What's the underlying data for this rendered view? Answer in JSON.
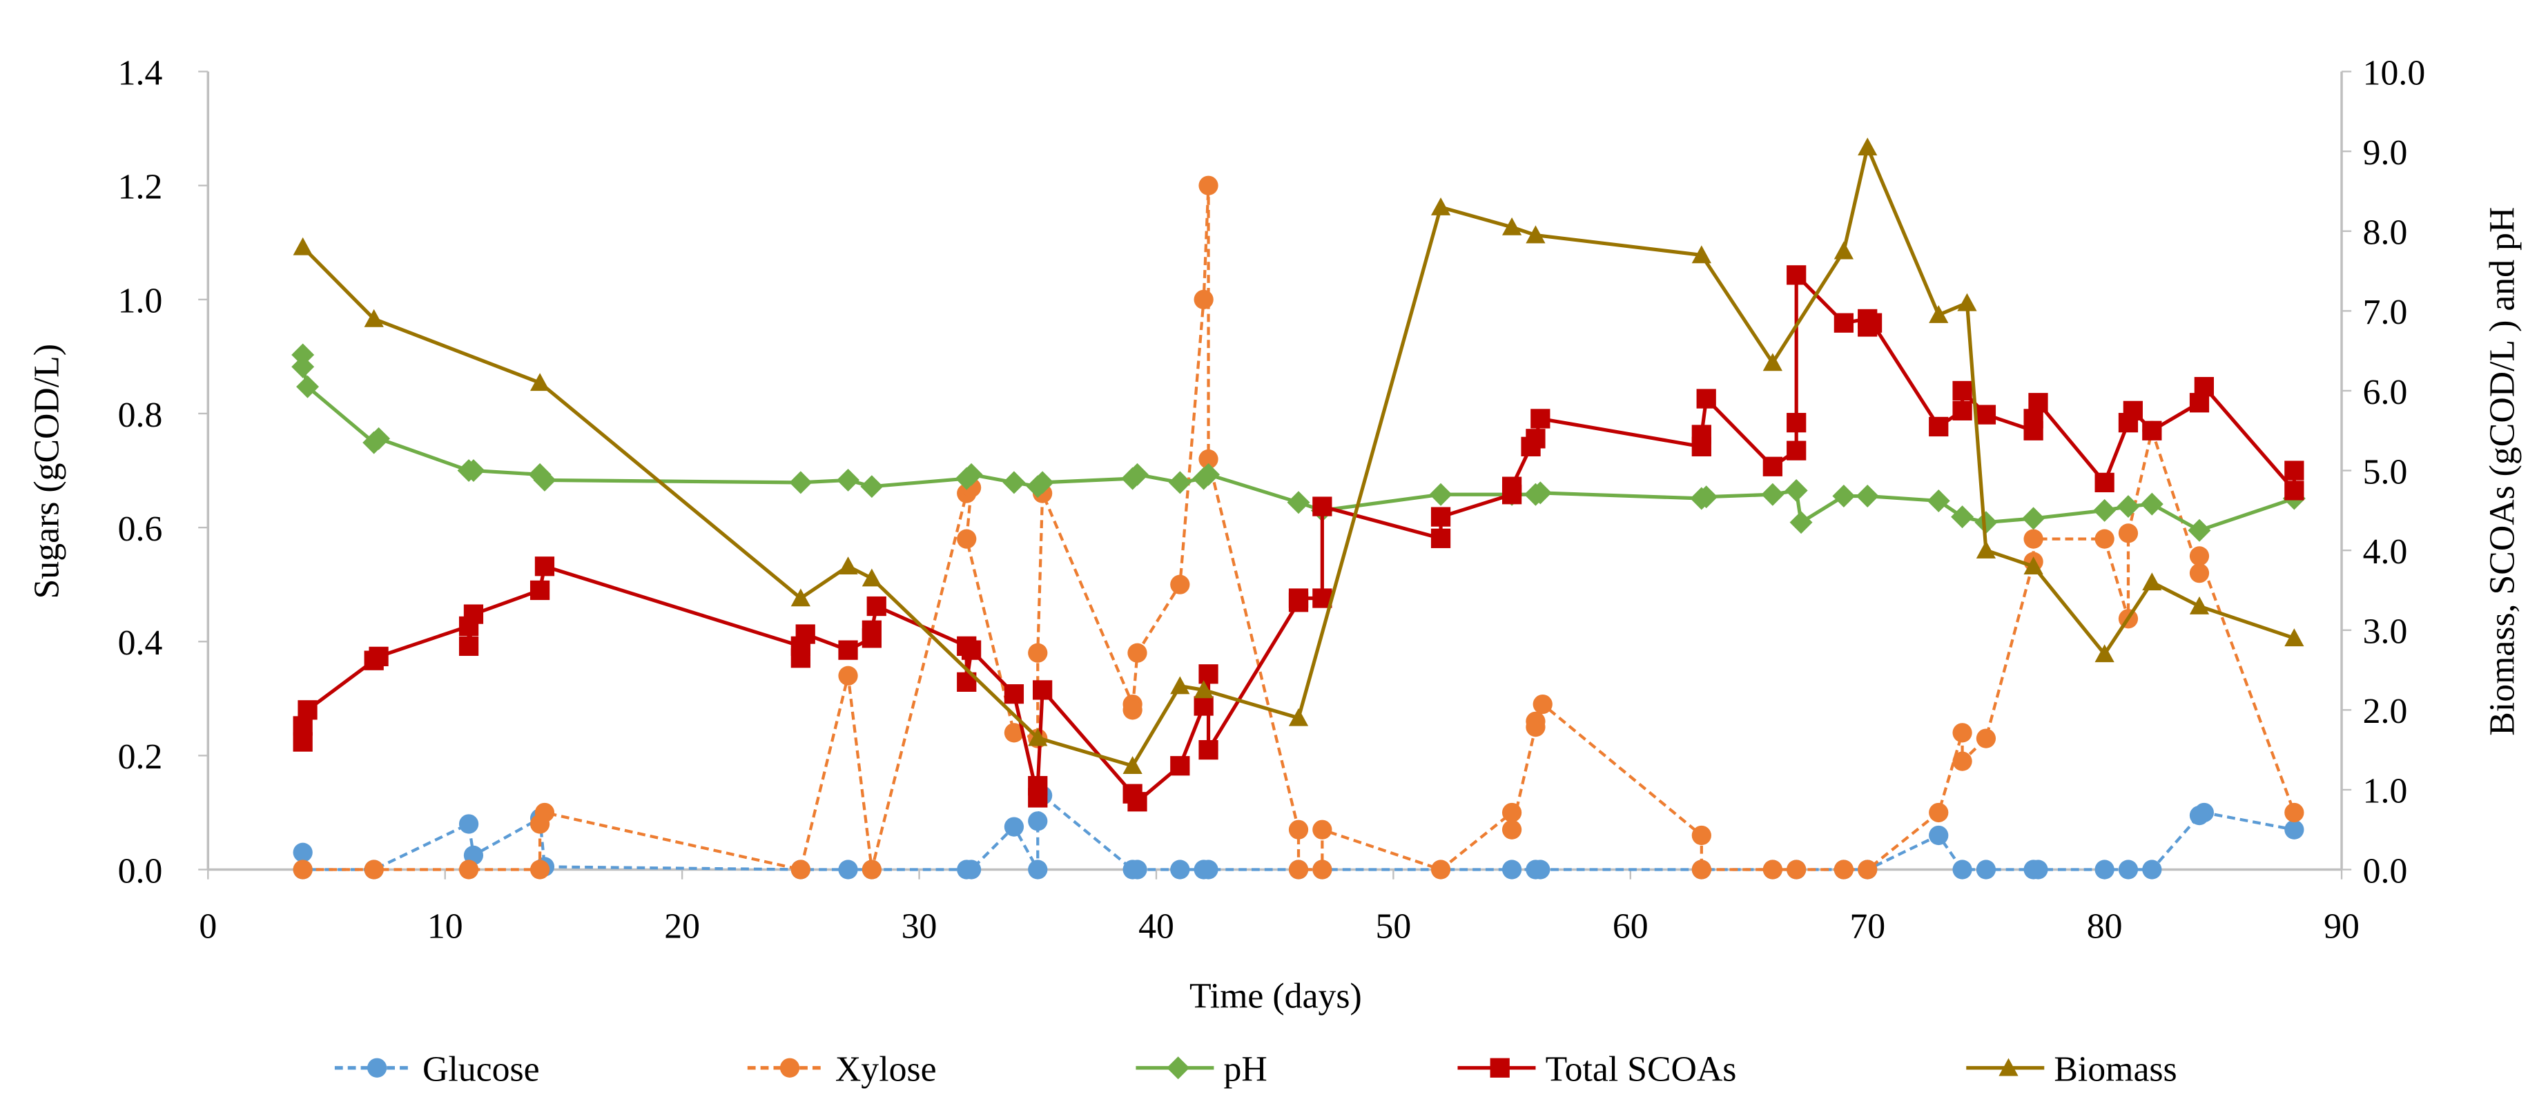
{
  "chart_data": {
    "type": "line",
    "xlabel": "Time (days)",
    "ylabel_left": "Sugars (gCOD/L)",
    "ylabel_right": "Biomass, SCOAs (gCOD/L ) and pH",
    "xlim": [
      0,
      90
    ],
    "ylim_left": [
      0,
      1.4
    ],
    "ylim_right": [
      0,
      10
    ],
    "x_ticks": [
      "0",
      "10",
      "20",
      "30",
      "40",
      "50",
      "60",
      "70",
      "80",
      "90"
    ],
    "y_ticks_left": [
      "0.0",
      "0.2",
      "0.4",
      "0.6",
      "0.8",
      "1.0",
      "1.2",
      "1.4"
    ],
    "y_ticks_right": [
      "0.0",
      "1.0",
      "2.0",
      "3.0",
      "4.0",
      "5.0",
      "6.0",
      "7.0",
      "8.0",
      "9.0",
      "10.0"
    ],
    "grid": false,
    "legend_position": "bottom",
    "series": [
      {
        "name": "Glucose",
        "axis": "left",
        "color": "#5b9bd5",
        "dash": true,
        "marker": "circle",
        "points": [
          [
            4,
            0.03
          ],
          [
            4,
            0
          ],
          [
            7,
            0
          ],
          [
            11,
            0.08
          ],
          [
            11.2,
            0.025
          ],
          [
            14,
            0.09
          ],
          [
            14.2,
            0.005
          ],
          [
            25,
            0
          ],
          [
            27,
            0
          ],
          [
            28,
            0
          ],
          [
            32,
            0
          ],
          [
            32.2,
            0
          ],
          [
            34,
            0.075
          ],
          [
            35,
            0
          ],
          [
            35,
            0.085
          ],
          [
            35.2,
            0.13
          ],
          [
            39,
            0
          ],
          [
            39.2,
            0
          ],
          [
            41,
            0
          ],
          [
            42,
            0
          ],
          [
            42.2,
            0
          ],
          [
            46,
            0
          ],
          [
            47,
            0
          ],
          [
            55,
            0
          ],
          [
            56,
            0
          ],
          [
            56.2,
            0
          ],
          [
            63,
            0
          ],
          [
            66,
            0
          ],
          [
            67,
            0
          ],
          [
            69,
            0
          ],
          [
            70,
            0
          ],
          [
            73,
            0.06
          ],
          [
            74,
            0
          ],
          [
            75,
            0
          ],
          [
            77,
            0
          ],
          [
            77.2,
            0
          ],
          [
            80,
            0
          ],
          [
            81,
            0
          ],
          [
            82,
            0
          ],
          [
            84,
            0.095
          ],
          [
            84.2,
            0.1
          ],
          [
            88,
            0.07
          ]
        ]
      },
      {
        "name": "Xylose",
        "axis": "left",
        "color": "#ed7d31",
        "dash": true,
        "marker": "circle",
        "points": [
          [
            4,
            0
          ],
          [
            7,
            0
          ],
          [
            11,
            0
          ],
          [
            14,
            0
          ],
          [
            14,
            0.08
          ],
          [
            14.2,
            0.1
          ],
          [
            25,
            0
          ],
          [
            27,
            0.34
          ],
          [
            28,
            0
          ],
          [
            32,
            0.66
          ],
          [
            32.2,
            0.67
          ],
          [
            32,
            0.58
          ],
          [
            34,
            0.24
          ],
          [
            35,
            0.23
          ],
          [
            35,
            0.38
          ],
          [
            35.2,
            0.66
          ],
          [
            39,
            0.29
          ],
          [
            39,
            0.28
          ],
          [
            39.2,
            0.38
          ],
          [
            41,
            0.5
          ],
          [
            42,
            1.0
          ],
          [
            42.2,
            1.2
          ],
          [
            42.2,
            0.72
          ],
          [
            46,
            0.07
          ],
          [
            46,
            0
          ],
          [
            47,
            0
          ],
          [
            47,
            0.07
          ],
          [
            52,
            0
          ],
          [
            55,
            0.1
          ],
          [
            55,
            0.07
          ],
          [
            56,
            0.25
          ],
          [
            56,
            0.26
          ],
          [
            56.3,
            0.29
          ],
          [
            63,
            0.06
          ],
          [
            63,
            0
          ],
          [
            66,
            0
          ],
          [
            67,
            0
          ],
          [
            69,
            0
          ],
          [
            70,
            0
          ],
          [
            73,
            0.1
          ],
          [
            74,
            0.24
          ],
          [
            74,
            0.19
          ],
          [
            75,
            0.23
          ],
          [
            77,
            0.54
          ],
          [
            77,
            0.58
          ],
          [
            80,
            0.58
          ],
          [
            81,
            0.44
          ],
          [
            81,
            0.59
          ],
          [
            82,
            0.77
          ],
          [
            84,
            0.52
          ],
          [
            84,
            0.55
          ],
          [
            88,
            0.1
          ]
        ]
      },
      {
        "name": "pH",
        "axis": "right",
        "color": "#70ad47",
        "dash": false,
        "marker": "diamond",
        "points": [
          [
            4,
            6.45
          ],
          [
            4,
            6.3
          ],
          [
            4.2,
            6.05
          ],
          [
            7,
            5.35
          ],
          [
            7.2,
            5.4
          ],
          [
            11,
            5.0
          ],
          [
            11.2,
            5.0
          ],
          [
            14,
            4.95
          ],
          [
            14.2,
            4.88
          ],
          [
            25,
            4.85
          ],
          [
            27,
            4.88
          ],
          [
            28,
            4.8
          ],
          [
            32,
            4.9
          ],
          [
            32.2,
            4.95
          ],
          [
            34,
            4.85
          ],
          [
            35,
            4.8
          ],
          [
            35.2,
            4.85
          ],
          [
            39,
            4.9
          ],
          [
            39.2,
            4.95
          ],
          [
            41,
            4.85
          ],
          [
            42,
            4.9
          ],
          [
            42.2,
            4.95
          ],
          [
            46,
            4.6
          ],
          [
            47,
            4.5
          ],
          [
            52,
            4.7
          ],
          [
            55,
            4.7
          ],
          [
            56,
            4.7
          ],
          [
            56.2,
            4.72
          ],
          [
            63,
            4.65
          ],
          [
            63.2,
            4.67
          ],
          [
            66,
            4.7
          ],
          [
            67,
            4.75
          ],
          [
            67.2,
            4.35
          ],
          [
            69,
            4.68
          ],
          [
            70,
            4.68
          ],
          [
            73,
            4.62
          ],
          [
            74,
            4.42
          ],
          [
            75,
            4.35
          ],
          [
            77,
            4.4
          ],
          [
            80,
            4.5
          ],
          [
            81,
            4.55
          ],
          [
            82,
            4.58
          ],
          [
            84,
            4.25
          ],
          [
            88,
            4.65
          ]
        ]
      },
      {
        "name": "Total SCOAs",
        "axis": "right",
        "color": "#c00000",
        "dash": false,
        "marker": "square",
        "points": [
          [
            4,
            1.6
          ],
          [
            4,
            1.8
          ],
          [
            4.2,
            2.0
          ],
          [
            7,
            2.62
          ],
          [
            7.2,
            2.67
          ],
          [
            11,
            3.05
          ],
          [
            11,
            2.8
          ],
          [
            11.2,
            3.2
          ],
          [
            14,
            3.5
          ],
          [
            14.2,
            3.8
          ],
          [
            25,
            2.8
          ],
          [
            25,
            2.65
          ],
          [
            25.2,
            2.95
          ],
          [
            27,
            2.75
          ],
          [
            28,
            2.9
          ],
          [
            28,
            3.0
          ],
          [
            28.2,
            3.3
          ],
          [
            32,
            2.8
          ],
          [
            32,
            2.35
          ],
          [
            32.2,
            2.75
          ],
          [
            34,
            2.2
          ],
          [
            35,
            0.9
          ],
          [
            35,
            1.05
          ],
          [
            35.2,
            2.25
          ],
          [
            39,
            0.95
          ],
          [
            39.2,
            0.85
          ],
          [
            41,
            1.3
          ],
          [
            42,
            2.05
          ],
          [
            42.2,
            2.45
          ],
          [
            42.2,
            1.5
          ],
          [
            46,
            3.35
          ],
          [
            46,
            3.4
          ],
          [
            47,
            3.4
          ],
          [
            47,
            4.55
          ],
          [
            52,
            4.15
          ],
          [
            52,
            4.42
          ],
          [
            55,
            4.7
          ],
          [
            55,
            4.8
          ],
          [
            55.8,
            5.3
          ],
          [
            56,
            5.4
          ],
          [
            56.2,
            5.65
          ],
          [
            63,
            5.3
          ],
          [
            63,
            5.45
          ],
          [
            63.2,
            5.9
          ],
          [
            66,
            5.05
          ],
          [
            67,
            5.25
          ],
          [
            67,
            5.6
          ],
          [
            67,
            7.45
          ],
          [
            69,
            6.85
          ],
          [
            70,
            6.9
          ],
          [
            70,
            6.8
          ],
          [
            70.2,
            6.85
          ],
          [
            73,
            5.55
          ],
          [
            74,
            5.75
          ],
          [
            74,
            6.0
          ],
          [
            75,
            5.7
          ],
          [
            77,
            5.5
          ],
          [
            77,
            5.65
          ],
          [
            77.2,
            5.85
          ],
          [
            80,
            4.85
          ],
          [
            81,
            5.6
          ],
          [
            81.2,
            5.75
          ],
          [
            82,
            5.5
          ],
          [
            84,
            5.85
          ],
          [
            84.2,
            6.05
          ],
          [
            88,
            4.75
          ],
          [
            88,
            5.0
          ]
        ]
      },
      {
        "name": "Biomass",
        "axis": "right",
        "color": "#997300",
        "dash": false,
        "marker": "triangle",
        "points": [
          [
            4,
            7.8
          ],
          [
            7,
            6.9
          ],
          [
            14,
            6.1
          ],
          [
            25,
            3.4
          ],
          [
            27,
            3.8
          ],
          [
            28,
            3.65
          ],
          [
            35,
            1.65
          ],
          [
            39,
            1.3
          ],
          [
            41,
            2.3
          ],
          [
            42,
            2.25
          ],
          [
            46,
            1.9
          ],
          [
            52,
            8.3
          ],
          [
            55,
            8.05
          ],
          [
            56,
            7.95
          ],
          [
            63,
            7.7
          ],
          [
            66,
            6.35
          ],
          [
            69,
            7.75
          ],
          [
            70,
            9.05
          ],
          [
            73,
            6.95
          ],
          [
            74.2,
            7.1
          ],
          [
            75,
            4.0
          ],
          [
            77,
            3.8
          ],
          [
            80,
            2.7
          ],
          [
            82,
            3.6
          ],
          [
            84,
            3.3
          ],
          [
            88,
            2.9
          ]
        ]
      }
    ]
  }
}
